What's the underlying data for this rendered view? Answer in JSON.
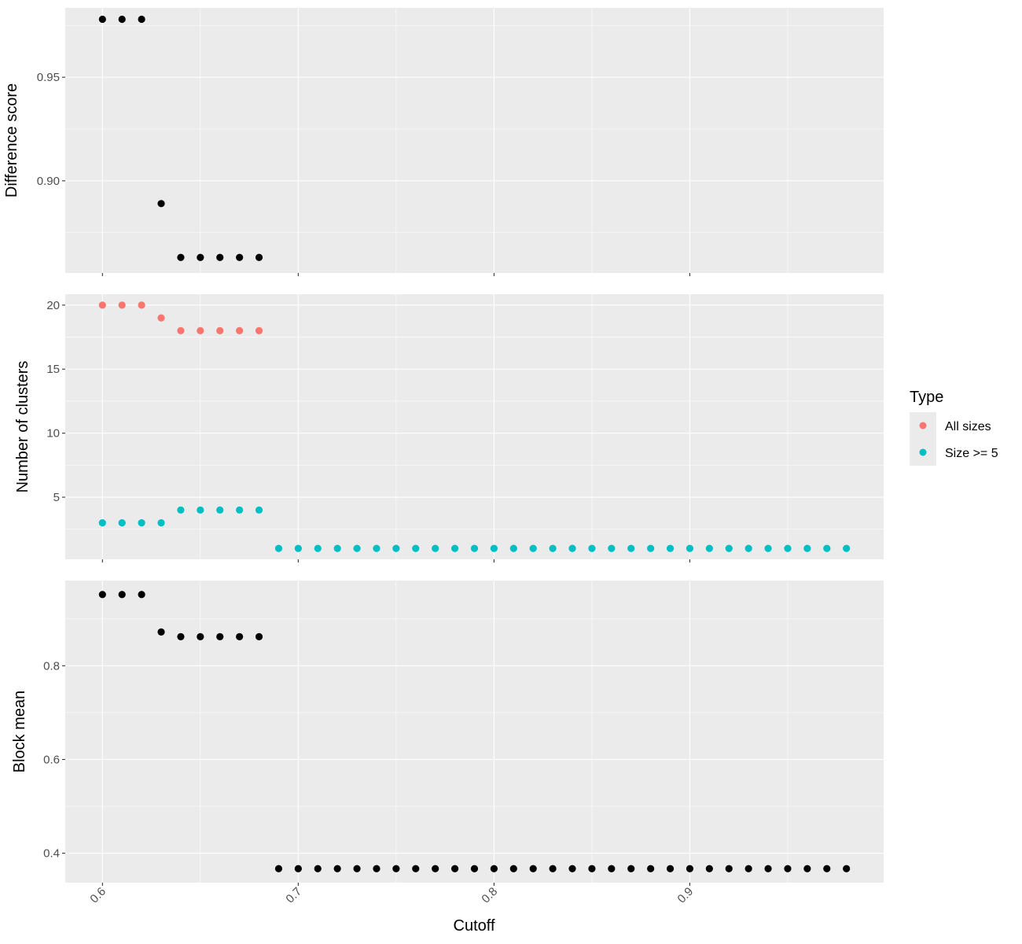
{
  "chart_data": [
    {
      "type": "scatter",
      "panel": "difference-score",
      "ylabel": "Difference score",
      "xlim": [
        0.581,
        0.999
      ],
      "ylim": [
        0.8555,
        0.9835
      ],
      "yticks": [
        0.9,
        0.95
      ],
      "ytick_labels": [
        "0.90",
        "0.95"
      ],
      "color": "#000000",
      "x": [
        0.6,
        0.61,
        0.62,
        0.63,
        0.64,
        0.65,
        0.66,
        0.67,
        0.68
      ],
      "y": [
        0.978,
        0.978,
        0.978,
        0.889,
        0.863,
        0.863,
        0.863,
        0.863,
        0.863
      ]
    },
    {
      "type": "scatter",
      "panel": "number-of-clusters",
      "ylabel": "Number of clusters",
      "xlim": [
        0.581,
        0.999
      ],
      "ylim": [
        0.15,
        20.85
      ],
      "yticks": [
        5,
        10,
        15,
        20
      ],
      "ytick_labels": [
        "5",
        "10",
        "15",
        "20"
      ],
      "series": [
        {
          "name": "All sizes",
          "color": "#F8766D",
          "x": [
            0.6,
            0.61,
            0.62,
            0.63,
            0.64,
            0.65,
            0.66,
            0.67,
            0.68
          ],
          "y": [
            20,
            20,
            20,
            19,
            18,
            18,
            18,
            18,
            18
          ]
        },
        {
          "name": "Size >= 5",
          "color": "#00BFC4",
          "x": [
            0.6,
            0.61,
            0.62,
            0.63,
            0.64,
            0.65,
            0.66,
            0.67,
            0.68,
            0.69,
            0.7,
            0.71,
            0.72,
            0.73,
            0.74,
            0.75,
            0.76,
            0.77,
            0.78,
            0.79,
            0.8,
            0.81,
            0.82,
            0.83,
            0.84,
            0.85,
            0.86,
            0.87,
            0.88,
            0.89,
            0.9,
            0.91,
            0.92,
            0.93,
            0.94,
            0.95,
            0.96,
            0.97,
            0.98
          ],
          "y": [
            3,
            3,
            3,
            3,
            4,
            4,
            4,
            4,
            4,
            1,
            1,
            1,
            1,
            1,
            1,
            1,
            1,
            1,
            1,
            1,
            1,
            1,
            1,
            1,
            1,
            1,
            1,
            1,
            1,
            1,
            1,
            1,
            1,
            1,
            1,
            1,
            1,
            1,
            1
          ]
        }
      ]
    },
    {
      "type": "scatter",
      "panel": "block-mean",
      "ylabel": "Block mean",
      "xlabel": "Cutoff",
      "xlim": [
        0.581,
        0.999
      ],
      "ylim": [
        0.3372,
        0.9818
      ],
      "yticks": [
        0.4,
        0.6,
        0.8
      ],
      "ytick_labels": [
        "0.4",
        "0.6",
        "0.8"
      ],
      "xticks": [
        0.6,
        0.7,
        0.8,
        0.9
      ],
      "xtick_labels": [
        "0.6",
        "0.7",
        "0.8",
        "0.9"
      ],
      "color": "#000000",
      "x": [
        0.6,
        0.61,
        0.62,
        0.63,
        0.64,
        0.65,
        0.66,
        0.67,
        0.68,
        0.69,
        0.7,
        0.71,
        0.72,
        0.73,
        0.74,
        0.75,
        0.76,
        0.77,
        0.78,
        0.79,
        0.8,
        0.81,
        0.82,
        0.83,
        0.84,
        0.85,
        0.86,
        0.87,
        0.88,
        0.89,
        0.9,
        0.91,
        0.92,
        0.93,
        0.94,
        0.95,
        0.96,
        0.97,
        0.98
      ],
      "y": [
        0.952,
        0.952,
        0.952,
        0.872,
        0.862,
        0.862,
        0.862,
        0.862,
        0.862,
        0.367,
        0.367,
        0.367,
        0.367,
        0.367,
        0.367,
        0.367,
        0.367,
        0.367,
        0.367,
        0.367,
        0.367,
        0.367,
        0.367,
        0.367,
        0.367,
        0.367,
        0.367,
        0.367,
        0.367,
        0.367,
        0.367,
        0.367,
        0.367,
        0.367,
        0.367,
        0.367,
        0.367,
        0.367,
        0.367
      ]
    }
  ],
  "legend": {
    "title": "Type",
    "items": [
      {
        "label": "All sizes",
        "color": "#F8766D"
      },
      {
        "label": "Size >= 5",
        "color": "#00BFC4"
      }
    ]
  },
  "style": {
    "panel_background": "#EBEBEB",
    "grid_color": "#FFFFFF",
    "point_color": "#000000"
  }
}
